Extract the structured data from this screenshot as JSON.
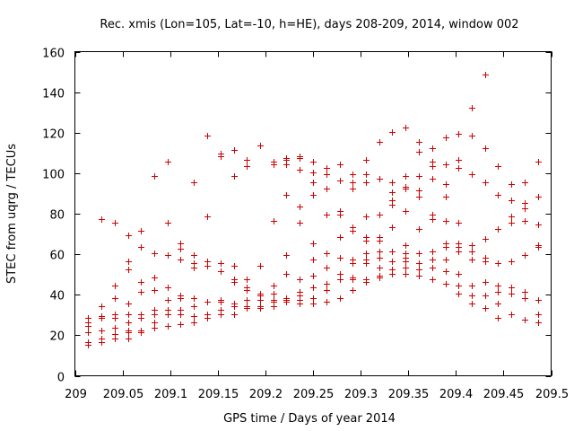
{
  "chart_data": {
    "type": "scatter",
    "title": "Rec. xmis (Lon=105, Lat=-10, h=HE), days 208-209, 2014, window 002",
    "xlabel": "GPS time / Days of year 2014",
    "ylabel": "STEC from uqrg / TECUs",
    "xlim": [
      209,
      209.5
    ],
    "ylim": [
      0,
      160
    ],
    "xticks": [
      209,
      209.05,
      209.1,
      209.15,
      209.2,
      209.25,
      209.3,
      209.35,
      209.4,
      209.45,
      209.5
    ],
    "xtick_labels": [
      "209",
      "209.05",
      "209.1",
      "209.15",
      "209.2",
      "209.25",
      "209.3",
      "209.35",
      "209.4",
      "209.45",
      "209.5"
    ],
    "yticks": [
      0,
      20,
      40,
      60,
      80,
      100,
      120,
      140,
      160
    ],
    "ytick_labels": [
      "0",
      "20",
      "40",
      "60",
      "80",
      "100",
      "120",
      "140",
      "160"
    ],
    "grid": false,
    "marker": "plus",
    "color": "#cc0000",
    "points": [
      [
        209.0139,
        15.5
      ],
      [
        209.0139,
        16.5
      ],
      [
        209.0139,
        21.5
      ],
      [
        209.0139,
        24.5
      ],
      [
        209.0139,
        26.5
      ],
      [
        209.0139,
        28.5
      ],
      [
        209.0278,
        16.5
      ],
      [
        209.0278,
        18.5
      ],
      [
        209.0278,
        22.5
      ],
      [
        209.0278,
        28.5
      ],
      [
        209.0278,
        29.5
      ],
      [
        209.0278,
        34.5
      ],
      [
        209.0278,
        77.5
      ],
      [
        209.0417,
        18.5
      ],
      [
        209.0417,
        20.5
      ],
      [
        209.0417,
        23.5
      ],
      [
        209.0417,
        28.5
      ],
      [
        209.0417,
        30.5
      ],
      [
        209.0417,
        38.5
      ],
      [
        209.0417,
        44.5
      ],
      [
        209.0417,
        75.5
      ],
      [
        209.0556,
        18.5
      ],
      [
        209.0556,
        21.5
      ],
      [
        209.0556,
        22.5
      ],
      [
        209.0556,
        26.5
      ],
      [
        209.0556,
        30.5
      ],
      [
        209.0556,
        35.5
      ],
      [
        209.0556,
        52.5
      ],
      [
        209.0556,
        56.5
      ],
      [
        209.0556,
        69.5
      ],
      [
        209.0694,
        21.5
      ],
      [
        209.0694,
        22.5
      ],
      [
        209.0694,
        28.5
      ],
      [
        209.0694,
        30.5
      ],
      [
        209.0694,
        41.5
      ],
      [
        209.0694,
        46.5
      ],
      [
        209.0694,
        63.5
      ],
      [
        209.0694,
        71.5
      ],
      [
        209.0833,
        23.5
      ],
      [
        209.0833,
        26.5
      ],
      [
        209.0833,
        30.5
      ],
      [
        209.0833,
        32.5
      ],
      [
        209.0833,
        42.5
      ],
      [
        209.0833,
        48.5
      ],
      [
        209.0833,
        60.5
      ],
      [
        209.0833,
        98.5
      ],
      [
        209.0972,
        24.5
      ],
      [
        209.0972,
        30.5
      ],
      [
        209.0972,
        32.5
      ],
      [
        209.0972,
        37.5
      ],
      [
        209.0972,
        43.5
      ],
      [
        209.0972,
        59.5
      ],
      [
        209.0972,
        75.5
      ],
      [
        209.0972,
        105.5
      ],
      [
        209.1111,
        25.5
      ],
      [
        209.1111,
        30.5
      ],
      [
        209.1111,
        32.5
      ],
      [
        209.1111,
        38.5
      ],
      [
        209.1111,
        39.5
      ],
      [
        209.1111,
        57.5
      ],
      [
        209.1111,
        62.5
      ],
      [
        209.1111,
        65.5
      ],
      [
        209.125,
        26.5
      ],
      [
        209.125,
        29.5
      ],
      [
        209.125,
        34.5
      ],
      [
        209.125,
        38.5
      ],
      [
        209.125,
        53.5
      ],
      [
        209.125,
        55.5
      ],
      [
        209.125,
        59.5
      ],
      [
        209.125,
        95.5
      ],
      [
        209.1389,
        28.5
      ],
      [
        209.1389,
        30.5
      ],
      [
        209.1389,
        36.5
      ],
      [
        209.1389,
        54.5
      ],
      [
        209.1389,
        56.5
      ],
      [
        209.1389,
        78.5
      ],
      [
        209.1389,
        118.5
      ],
      [
        209.1528,
        30.5
      ],
      [
        209.1528,
        32.5
      ],
      [
        209.1528,
        36.5
      ],
      [
        209.1528,
        37.5
      ],
      [
        209.1528,
        51.5
      ],
      [
        209.1528,
        55.5
      ],
      [
        209.1528,
        108.5
      ],
      [
        209.1528,
        109.5
      ],
      [
        209.1667,
        30.5
      ],
      [
        209.1667,
        34.5
      ],
      [
        209.1667,
        35.5
      ],
      [
        209.1667,
        46.5
      ],
      [
        209.1667,
        47.5
      ],
      [
        209.1667,
        54.5
      ],
      [
        209.1667,
        98.5
      ],
      [
        209.1667,
        111.5
      ],
      [
        209.1806,
        33.5
      ],
      [
        209.1806,
        34.5
      ],
      [
        209.1806,
        37.5
      ],
      [
        209.1806,
        42.5
      ],
      [
        209.1806,
        43.5
      ],
      [
        209.1806,
        47.5
      ],
      [
        209.1806,
        103.5
      ],
      [
        209.1806,
        106.5
      ],
      [
        209.1944,
        33.5
      ],
      [
        209.1944,
        34.5
      ],
      [
        209.1944,
        37.5
      ],
      [
        209.1944,
        39.5
      ],
      [
        209.1944,
        40.5
      ],
      [
        209.1944,
        54.5
      ],
      [
        209.1944,
        113.5
      ],
      [
        209.2083,
        34.5
      ],
      [
        209.2083,
        36.5
      ],
      [
        209.2083,
        37.5
      ],
      [
        209.2083,
        40.5
      ],
      [
        209.2083,
        44.5
      ],
      [
        209.2083,
        76.5
      ],
      [
        209.2083,
        104.5
      ],
      [
        209.2083,
        105.5
      ],
      [
        209.2222,
        36.5
      ],
      [
        209.2222,
        37.5
      ],
      [
        209.2222,
        38.5
      ],
      [
        209.2222,
        50.5
      ],
      [
        209.2222,
        59.5
      ],
      [
        209.2222,
        89.5
      ],
      [
        209.2222,
        104.5
      ],
      [
        209.2222,
        106.5
      ],
      [
        209.2222,
        107.5
      ],
      [
        209.2361,
        35.5
      ],
      [
        209.2361,
        37.5
      ],
      [
        209.2361,
        39.5
      ],
      [
        209.2361,
        41.5
      ],
      [
        209.2361,
        47.5
      ],
      [
        209.2361,
        75.5
      ],
      [
        209.2361,
        83.5
      ],
      [
        209.2361,
        101.5
      ],
      [
        209.2361,
        107.5
      ],
      [
        209.2361,
        108.5
      ],
      [
        209.25,
        35.5
      ],
      [
        209.25,
        38.5
      ],
      [
        209.25,
        43.5
      ],
      [
        209.25,
        49.5
      ],
      [
        209.25,
        57.5
      ],
      [
        209.25,
        65.5
      ],
      [
        209.25,
        89.5
      ],
      [
        209.25,
        95.5
      ],
      [
        209.25,
        100.5
      ],
      [
        209.25,
        105.5
      ],
      [
        209.2639,
        36.5
      ],
      [
        209.2639,
        42.5
      ],
      [
        209.2639,
        45.5
      ],
      [
        209.2639,
        53.5
      ],
      [
        209.2639,
        60.5
      ],
      [
        209.2639,
        79.5
      ],
      [
        209.2639,
        92.5
      ],
      [
        209.2639,
        99.5
      ],
      [
        209.2639,
        102.5
      ],
      [
        209.2778,
        38.5
      ],
      [
        209.2778,
        47.5
      ],
      [
        209.2778,
        50.5
      ],
      [
        209.2778,
        58.5
      ],
      [
        209.2778,
        68.5
      ],
      [
        209.2778,
        79.5
      ],
      [
        209.2778,
        81.5
      ],
      [
        209.2778,
        96.5
      ],
      [
        209.2778,
        104.5
      ],
      [
        209.2917,
        42.5
      ],
      [
        209.2917,
        47.5
      ],
      [
        209.2917,
        48.5
      ],
      [
        209.2917,
        55.5
      ],
      [
        209.2917,
        57.5
      ],
      [
        209.2917,
        71.5
      ],
      [
        209.2917,
        73.5
      ],
      [
        209.2917,
        92.5
      ],
      [
        209.2917,
        95.5
      ],
      [
        209.2917,
        99.5
      ],
      [
        209.3056,
        46.5
      ],
      [
        209.3056,
        47.5
      ],
      [
        209.3056,
        55.5
      ],
      [
        209.3056,
        57.5
      ],
      [
        209.3056,
        60.5
      ],
      [
        209.3056,
        66.5
      ],
      [
        209.3056,
        68.5
      ],
      [
        209.3056,
        78.5
      ],
      [
        209.3056,
        95.5
      ],
      [
        209.3056,
        99.5
      ],
      [
        209.3056,
        106.5
      ],
      [
        209.3194,
        48.5
      ],
      [
        209.3194,
        49.5
      ],
      [
        209.3194,
        53.5
      ],
      [
        209.3194,
        58.5
      ],
      [
        209.3194,
        61.5
      ],
      [
        209.3194,
        66.5
      ],
      [
        209.3194,
        68.5
      ],
      [
        209.3194,
        79.5
      ],
      [
        209.3194,
        97.5
      ],
      [
        209.3194,
        115.5
      ],
      [
        209.3333,
        50.5
      ],
      [
        209.3333,
        52.5
      ],
      [
        209.3333,
        56.5
      ],
      [
        209.3333,
        61.5
      ],
      [
        209.3333,
        73.5
      ],
      [
        209.3333,
        84.5
      ],
      [
        209.3333,
        86.5
      ],
      [
        209.3333,
        90.5
      ],
      [
        209.3333,
        95.5
      ],
      [
        209.3333,
        120.5
      ],
      [
        209.3472,
        50.5
      ],
      [
        209.3472,
        53.5
      ],
      [
        209.3472,
        56.5
      ],
      [
        209.3472,
        58.5
      ],
      [
        209.3472,
        60.5
      ],
      [
        209.3472,
        64.5
      ],
      [
        209.3472,
        81.5
      ],
      [
        209.3472,
        92.5
      ],
      [
        209.3472,
        93.5
      ],
      [
        209.3472,
        98.5
      ],
      [
        209.3472,
        122.5
      ],
      [
        209.3611,
        49.5
      ],
      [
        209.3611,
        52.5
      ],
      [
        209.3611,
        55.5
      ],
      [
        209.3611,
        60.5
      ],
      [
        209.3611,
        72.5
      ],
      [
        209.3611,
        88.5
      ],
      [
        209.3611,
        91.5
      ],
      [
        209.3611,
        98.5
      ],
      [
        209.3611,
        110.5
      ],
      [
        209.3611,
        115.5
      ],
      [
        209.375,
        47.5
      ],
      [
        209.375,
        53.5
      ],
      [
        209.375,
        57.5
      ],
      [
        209.375,
        61.5
      ],
      [
        209.375,
        77.5
      ],
      [
        209.375,
        79.5
      ],
      [
        209.375,
        97.5
      ],
      [
        209.375,
        103.5
      ],
      [
        209.375,
        105.5
      ],
      [
        209.375,
        112.5
      ],
      [
        209.3889,
        45.5
      ],
      [
        209.3889,
        51.5
      ],
      [
        209.3889,
        57.5
      ],
      [
        209.3889,
        63.5
      ],
      [
        209.3889,
        65.5
      ],
      [
        209.3889,
        76.5
      ],
      [
        209.3889,
        88.5
      ],
      [
        209.3889,
        94.5
      ],
      [
        209.3889,
        104.5
      ],
      [
        209.3889,
        117.5
      ],
      [
        209.4028,
        40.5
      ],
      [
        209.4028,
        44.5
      ],
      [
        209.4028,
        50.5
      ],
      [
        209.4028,
        61.5
      ],
      [
        209.4028,
        63.5
      ],
      [
        209.4028,
        65.5
      ],
      [
        209.4028,
        75.5
      ],
      [
        209.4028,
        102.5
      ],
      [
        209.4028,
        106.5
      ],
      [
        209.4028,
        119.5
      ],
      [
        209.4167,
        35.5
      ],
      [
        209.4167,
        39.5
      ],
      [
        209.4167,
        44.5
      ],
      [
        209.4167,
        57.5
      ],
      [
        209.4167,
        61.5
      ],
      [
        209.4167,
        64.5
      ],
      [
        209.4167,
        99.5
      ],
      [
        209.4167,
        118.5
      ],
      [
        209.4167,
        132.5
      ],
      [
        209.4306,
        33.5
      ],
      [
        209.4306,
        39.5
      ],
      [
        209.4306,
        46.5
      ],
      [
        209.4306,
        56.5
      ],
      [
        209.4306,
        58.5
      ],
      [
        209.4306,
        67.5
      ],
      [
        209.4306,
        95.5
      ],
      [
        209.4306,
        112.5
      ],
      [
        209.4306,
        148.5
      ],
      [
        209.4444,
        28.5
      ],
      [
        209.4444,
        35.5
      ],
      [
        209.4444,
        41.5
      ],
      [
        209.4444,
        44.5
      ],
      [
        209.4444,
        55.5
      ],
      [
        209.4444,
        72.5
      ],
      [
        209.4444,
        89.5
      ],
      [
        209.4444,
        103.5
      ],
      [
        209.4583,
        30.5
      ],
      [
        209.4583,
        40.5
      ],
      [
        209.4583,
        43.5
      ],
      [
        209.4583,
        56.5
      ],
      [
        209.4583,
        75.5
      ],
      [
        209.4583,
        78.5
      ],
      [
        209.4583,
        86.5
      ],
      [
        209.4583,
        94.5
      ],
      [
        209.4722,
        27.5
      ],
      [
        209.4722,
        38.5
      ],
      [
        209.4722,
        41.5
      ],
      [
        209.4722,
        59.5
      ],
      [
        209.4722,
        76.5
      ],
      [
        209.4722,
        82.5
      ],
      [
        209.4722,
        85.5
      ],
      [
        209.4722,
        95.5
      ],
      [
        209.4861,
        26.5
      ],
      [
        209.4861,
        30.5
      ],
      [
        209.4861,
        37.5
      ],
      [
        209.4861,
        63.5
      ],
      [
        209.4861,
        64.5
      ],
      [
        209.4861,
        74.5
      ],
      [
        209.4861,
        88.5
      ],
      [
        209.4861,
        105.5
      ]
    ]
  }
}
